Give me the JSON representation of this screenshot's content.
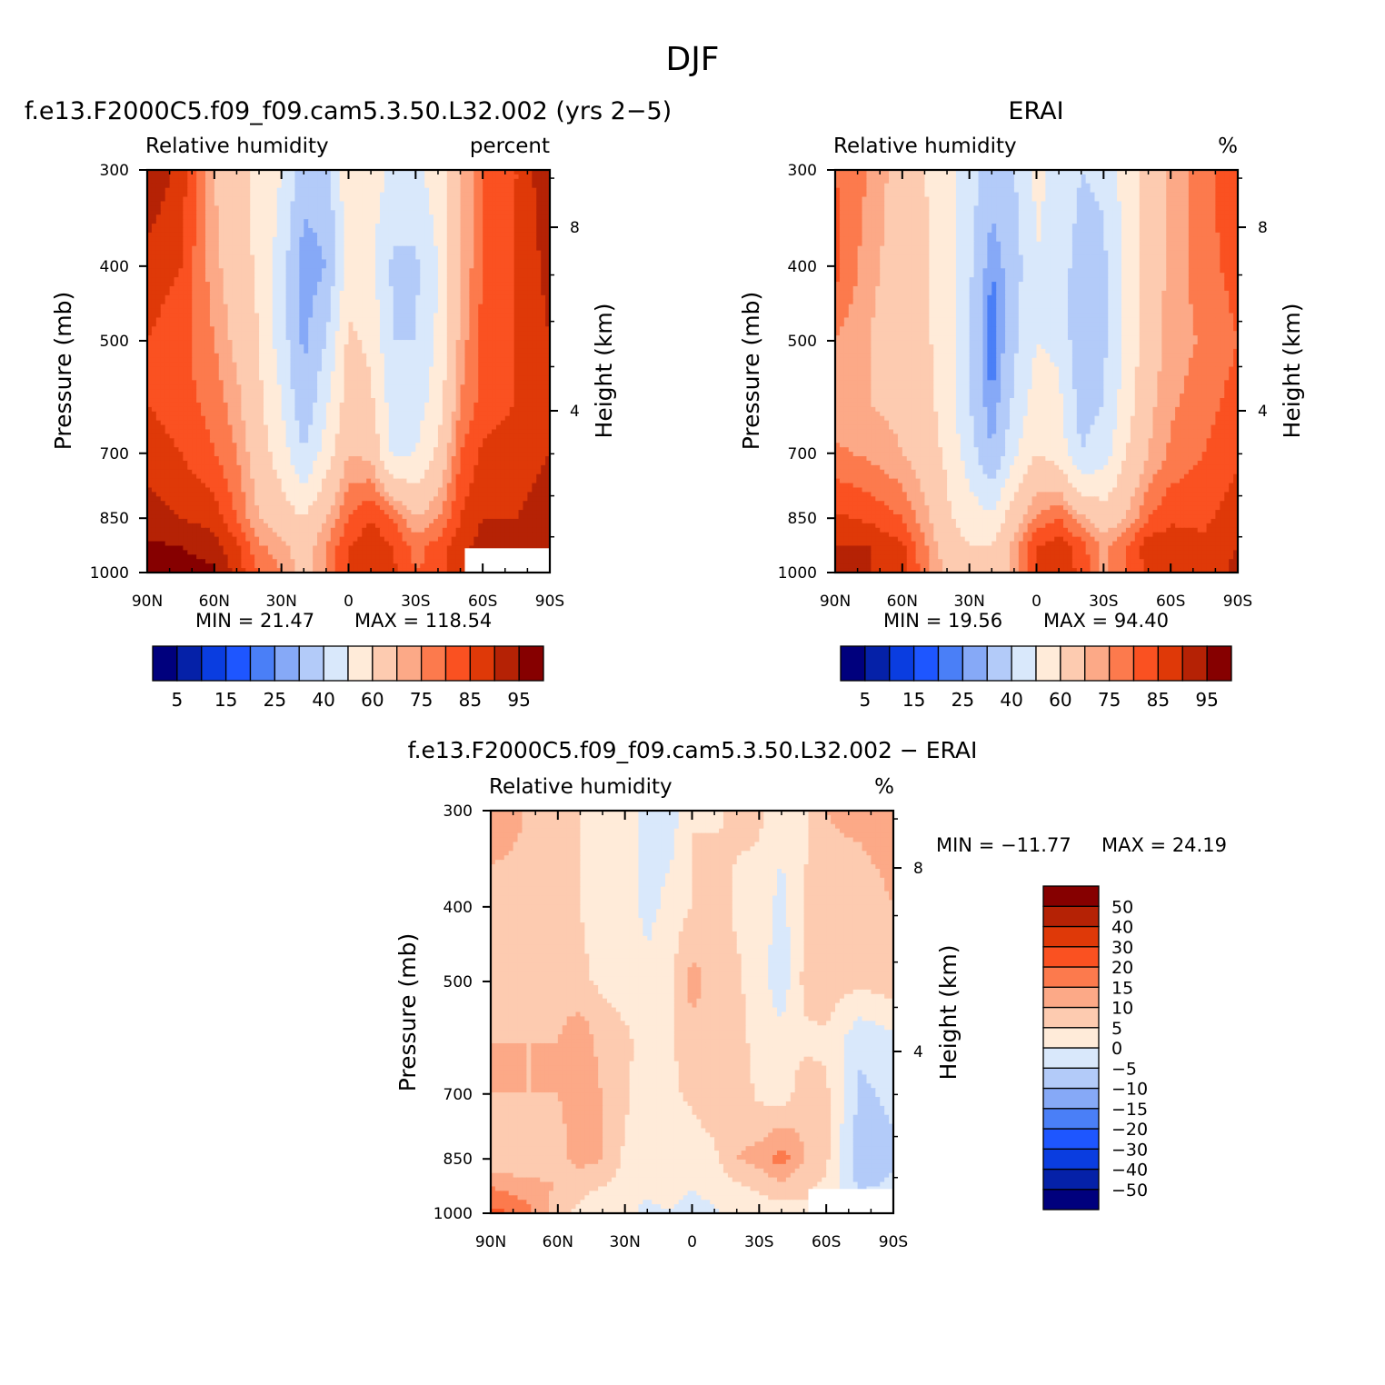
{
  "figure": {
    "title": "DJF"
  },
  "colors": {
    "rh_palette": [
      "#00007d",
      "#0521a8",
      "#0a3de0",
      "#1e56ff",
      "#4a7ff7",
      "#86a9f7",
      "#b3cbf9",
      "#d9e8fb",
      "#ffebd9",
      "#fdcbb0",
      "#fca987",
      "#fc7a4d",
      "#fa5121",
      "#df3908",
      "#b52205",
      "#860000"
    ],
    "diff_palette": [
      "#00007d",
      "#0521a8",
      "#0a3de0",
      "#1e56ff",
      "#4a7ff7",
      "#86a9f7",
      "#b3cbf9",
      "#d9e8fb",
      "#ffebd9",
      "#fdcbb0",
      "#fca987",
      "#fc7a4d",
      "#fa5121",
      "#df3908",
      "#b52205",
      "#860000"
    ]
  },
  "chart_data": [
    {
      "type": "heatmap",
      "panel": "model",
      "title": "f.e13.F2000C5.f09_f09.cam5.3.50.L32.002 (yrs 2−5)",
      "subtitle_left": "Relative humidity",
      "subtitle_right": "percent",
      "xlabel": "",
      "ylabel": "Pressure (mb)",
      "ylabel_right": "Height (km)",
      "x_ticks": [
        "90N",
        "60N",
        "30N",
        "0",
        "30S",
        "60S",
        "90S"
      ],
      "x_lim": [
        90,
        -90
      ],
      "y_ticks": [
        "300",
        "400",
        "500",
        "700",
        "850",
        "1000"
      ],
      "y_lim": [
        1000,
        300
      ],
      "y_scale": "log",
      "y_right_ticks": [
        "8",
        "4"
      ],
      "min_label": "MIN = 21.47",
      "max_label": "MAX = 118.54",
      "x": [
        90,
        75,
        60,
        50,
        40,
        30,
        20,
        10,
        0,
        -10,
        -20,
        -30,
        -40,
        -50,
        -60,
        -75,
        -90
      ],
      "y": [
        300,
        400,
        500,
        600,
        700,
        850,
        925,
        1000
      ],
      "values": [
        [
          95,
          88,
          70,
          62,
          58,
          50,
          35,
          35,
          58,
          55,
          48,
          48,
          55,
          70,
          80,
          85,
          95
        ],
        [
          88,
          85,
          72,
          65,
          58,
          45,
          25,
          30,
          55,
          52,
          38,
          38,
          50,
          70,
          80,
          85,
          92
        ],
        [
          85,
          82,
          75,
          68,
          60,
          45,
          28,
          40,
          62,
          58,
          40,
          40,
          52,
          72,
          82,
          85,
          90
        ],
        [
          85,
          82,
          78,
          72,
          62,
          50,
          32,
          48,
          65,
          62,
          45,
          45,
          55,
          75,
          82,
          85,
          90
        ],
        [
          88,
          85,
          80,
          75,
          65,
          55,
          40,
          55,
          70,
          68,
          48,
          50,
          62,
          80,
          86,
          88,
          90
        ],
        [
          92,
          90,
          88,
          80,
          70,
          65,
          60,
          70,
          80,
          85,
          80,
          70,
          75,
          85,
          90,
          90,
          92
        ],
        [
          96,
          95,
          92,
          86,
          76,
          72,
          66,
          75,
          85,
          88,
          85,
          78,
          82,
          88,
          92,
          92,
          92
        ],
        [
          98,
          98,
          96,
          88,
          80,
          75,
          68,
          75,
          86,
          88,
          86,
          80,
          82,
          88,
          92,
          92,
          92
        ]
      ],
      "colorbar_labels": [
        "5",
        "15",
        "25",
        "40",
        "60",
        "75",
        "85",
        "95"
      ]
    },
    {
      "type": "heatmap",
      "panel": "obs",
      "title": "ERAI",
      "subtitle_left": "Relative humidity",
      "subtitle_right": "%",
      "xlabel": "",
      "ylabel": "Pressure (mb)",
      "ylabel_right": "Height (km)",
      "x_ticks": [
        "90N",
        "60N",
        "30N",
        "0",
        "30S",
        "60S",
        "90S"
      ],
      "x_lim": [
        90,
        -90
      ],
      "y_ticks": [
        "300",
        "400",
        "500",
        "700",
        "850",
        "1000"
      ],
      "y_lim": [
        1000,
        300
      ],
      "y_scale": "log",
      "y_right_ticks": [
        "8",
        "4"
      ],
      "min_label": "MIN = 19.56",
      "max_label": "MAX = 94.40",
      "x": [
        90,
        75,
        60,
        50,
        40,
        30,
        20,
        10,
        0,
        -10,
        -20,
        -30,
        -40,
        -50,
        -60,
        -75,
        -90
      ],
      "y": [
        300,
        400,
        500,
        600,
        700,
        850,
        925,
        1000
      ],
      "values": [
        [
          80,
          75,
          66,
          60,
          55,
          45,
          35,
          40,
          52,
          48,
          40,
          42,
          55,
          65,
          72,
          78,
          85
        ],
        [
          82,
          72,
          66,
          62,
          55,
          42,
          25,
          35,
          50,
          45,
          35,
          38,
          52,
          65,
          72,
          78,
          82
        ],
        [
          75,
          70,
          66,
          62,
          55,
          40,
          20,
          38,
          50,
          48,
          32,
          38,
          52,
          66,
          72,
          76,
          80
        ],
        [
          72,
          70,
          68,
          64,
          55,
          40,
          25,
          42,
          55,
          52,
          36,
          40,
          55,
          68,
          74,
          78,
          82
        ],
        [
          76,
          74,
          70,
          66,
          58,
          45,
          30,
          48,
          60,
          56,
          40,
          45,
          60,
          70,
          76,
          80,
          84
        ],
        [
          86,
          84,
          80,
          72,
          62,
          55,
          52,
          66,
          76,
          80,
          72,
          65,
          70,
          80,
          84,
          84,
          88
        ],
        [
          90,
          90,
          86,
          76,
          66,
          60,
          60,
          72,
          85,
          88,
          82,
          74,
          80,
          88,
          88,
          86,
          90
        ],
        [
          92,
          90,
          86,
          78,
          68,
          62,
          60,
          72,
          86,
          88,
          84,
          74,
          80,
          86,
          86,
          86,
          92
        ]
      ],
      "colorbar_labels": [
        "5",
        "15",
        "25",
        "40",
        "60",
        "75",
        "85",
        "95"
      ]
    },
    {
      "type": "heatmap",
      "panel": "difference",
      "title": "f.e13.F2000C5.f09_f09.cam5.3.50.L32.002 − ERAI",
      "subtitle_left": "Relative humidity",
      "subtitle_right": "%",
      "xlabel": "",
      "ylabel": "Pressure (mb)",
      "ylabel_right": "Height (km)",
      "x_ticks": [
        "90N",
        "60N",
        "30N",
        "0",
        "30S",
        "60S",
        "90S"
      ],
      "x_lim": [
        90,
        -90
      ],
      "y_ticks": [
        "300",
        "400",
        "500",
        "700",
        "850",
        "1000"
      ],
      "y_lim": [
        1000,
        300
      ],
      "y_scale": "log",
      "y_right_ticks": [
        "8",
        "4"
      ],
      "min_label": "MIN = −11.77",
      "max_label": "MAX = 24.19",
      "x": [
        90,
        75,
        60,
        50,
        40,
        30,
        20,
        10,
        0,
        -10,
        -20,
        -30,
        -40,
        -50,
        -60,
        -75,
        -90
      ],
      "y": [
        300,
        400,
        500,
        600,
        700,
        850,
        925,
        1000
      ],
      "values": [
        [
          15,
          10,
          6,
          5,
          3,
          2,
          -2,
          -3,
          5,
          4,
          6,
          6,
          2,
          4,
          10,
          12,
          14
        ],
        [
          6,
          8,
          6,
          5,
          3,
          3,
          -2,
          2,
          5,
          8,
          4,
          3,
          -2,
          5,
          8,
          6,
          10
        ],
        [
          8,
          8,
          8,
          6,
          4,
          3,
          2,
          4,
          12,
          8,
          6,
          2,
          -3,
          6,
          8,
          6,
          8
        ],
        [
          10,
          10,
          10,
          14,
          8,
          6,
          3,
          4,
          8,
          8,
          7,
          3,
          2,
          4,
          4,
          -4,
          -2
        ],
        [
          10,
          10,
          10,
          12,
          10,
          6,
          2,
          4,
          6,
          8,
          8,
          4,
          2,
          8,
          6,
          -6,
          -4
        ],
        [
          6,
          6,
          8,
          12,
          10,
          4,
          2,
          3,
          2,
          4,
          10,
          12,
          18,
          10,
          6,
          -8,
          -6
        ],
        [
          15,
          12,
          10,
          6,
          5,
          3,
          2,
          2,
          0,
          2,
          4,
          6,
          8,
          6,
          4,
          -6,
          -4
        ],
        [
          22,
          18,
          6,
          4,
          2,
          2,
          -2,
          0,
          -2,
          -1,
          2,
          2,
          2,
          4,
          4,
          4,
          4
        ]
      ],
      "colorbar_labels": [
        "50",
        "40",
        "30",
        "20",
        "15",
        "10",
        "5",
        "0",
        "−5",
        "−10",
        "−15",
        "−20",
        "−30",
        "−40",
        "−50"
      ]
    }
  ]
}
